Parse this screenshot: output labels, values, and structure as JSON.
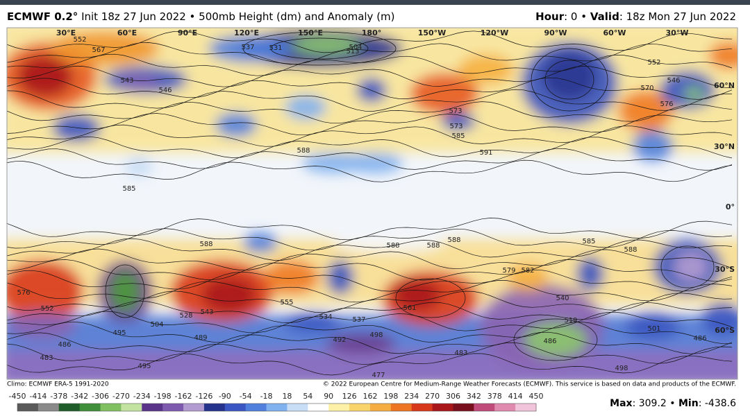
{
  "header": {
    "model": "ECMWF 0.2°",
    "description": "Init 18z 27 Jun 2022 • 500mb Height (dm) and Anomaly (m)",
    "hour_label": "Hour",
    "hour_value": ": 0 •",
    "valid_label": "Valid",
    "valid_value": ": 18z Mon 27 Jun 2022"
  },
  "map": {
    "longitude_labels": [
      "30°E",
      "60°E",
      "90°E",
      "120°E",
      "150°E",
      "180°",
      "150°W",
      "120°W",
      "90°W",
      "60°W",
      "30°W"
    ],
    "latitude_labels": [
      "60°N",
      "30°N",
      "0°",
      "30°S",
      "60°S"
    ],
    "contour_labels": [
      "552",
      "567",
      "543",
      "546",
      "537",
      "531",
      "513",
      "504",
      "573",
      "585",
      "591",
      "576",
      "570",
      "546",
      "552",
      "588",
      "585",
      "588",
      "588",
      "588",
      "588",
      "579",
      "582",
      "585",
      "576",
      "552",
      "543",
      "528",
      "504",
      "495",
      "489",
      "486",
      "483",
      "495",
      "555",
      "561",
      "540",
      "519",
      "501",
      "486",
      "486",
      "498",
      "477",
      "483",
      "588",
      "573",
      "492",
      "498",
      "537",
      "534"
    ]
  },
  "footer": {
    "climo": "Climo: ECMWF ERA-5 1991-2020",
    "copyright": "© 2022 European Centre for Medium-Range Weather Forecasts (ECMWF). This service is based on data and products of the ECMWF.",
    "colorbar_ticks": [
      "-450",
      "-414",
      "-378",
      "-342",
      "-306",
      "-270",
      "-234",
      "-198",
      "-162",
      "-126",
      "-90",
      "-54",
      "-18",
      "18",
      "54",
      "90",
      "126",
      "162",
      "198",
      "234",
      "270",
      "306",
      "342",
      "378",
      "414",
      "450"
    ],
    "max_label": "Max",
    "max_value": ": 309.2 •",
    "min_label": "Min",
    "min_value": ": -438.6"
  }
}
